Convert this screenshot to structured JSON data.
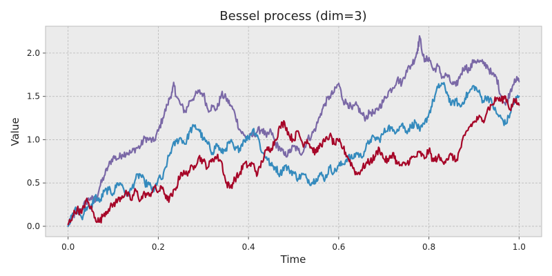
{
  "chart_data": {
    "type": "line",
    "title": "Bessel process (dim=3)",
    "xlabel": "Time",
    "ylabel": "Value",
    "xlim": [
      -0.05,
      1.05
    ],
    "ylim": [
      -0.12,
      2.31
    ],
    "xticks": [
      0.0,
      0.2,
      0.4,
      0.6,
      0.8,
      1.0
    ],
    "xtick_labels": [
      "0.0",
      "0.2",
      "0.4",
      "0.6",
      "0.8",
      "1.0"
    ],
    "yticks": [
      0.0,
      0.5,
      1.0,
      1.5,
      2.0
    ],
    "ytick_labels": [
      "0.0",
      "0.5",
      "1.0",
      "1.5",
      "2.0"
    ],
    "grid": true,
    "legend": "none",
    "background": "#ebebeb",
    "series": [
      {
        "color": "#7a68a6",
        "points": [
          [
            0.0,
            0.0
          ],
          [
            0.01,
            0.12
          ],
          [
            0.02,
            0.15
          ],
          [
            0.03,
            0.2
          ],
          [
            0.04,
            0.28
          ],
          [
            0.05,
            0.33
          ],
          [
            0.06,
            0.28
          ],
          [
            0.07,
            0.45
          ],
          [
            0.08,
            0.58
          ],
          [
            0.09,
            0.7
          ],
          [
            0.1,
            0.8
          ],
          [
            0.11,
            0.78
          ],
          [
            0.12,
            0.83
          ],
          [
            0.13,
            0.85
          ],
          [
            0.14,
            0.85
          ],
          [
            0.15,
            0.9
          ],
          [
            0.16,
            0.92
          ],
          [
            0.17,
            1.02
          ],
          [
            0.18,
            1.0
          ],
          [
            0.19,
            0.98
          ],
          [
            0.2,
            1.1
          ],
          [
            0.21,
            1.25
          ],
          [
            0.22,
            1.4
          ],
          [
            0.23,
            1.55
          ],
          [
            0.235,
            1.63
          ],
          [
            0.24,
            1.5
          ],
          [
            0.25,
            1.4
          ],
          [
            0.26,
            1.32
          ],
          [
            0.27,
            1.45
          ],
          [
            0.28,
            1.5
          ],
          [
            0.29,
            1.55
          ],
          [
            0.3,
            1.53
          ],
          [
            0.31,
            1.35
          ],
          [
            0.32,
            1.38
          ],
          [
            0.33,
            1.35
          ],
          [
            0.34,
            1.52
          ],
          [
            0.35,
            1.48
          ],
          [
            0.36,
            1.4
          ],
          [
            0.37,
            1.3
          ],
          [
            0.38,
            1.12
          ],
          [
            0.39,
            1.05
          ],
          [
            0.4,
            1.02
          ],
          [
            0.41,
            1.05
          ],
          [
            0.42,
            1.1
          ],
          [
            0.43,
            1.12
          ],
          [
            0.44,
            1.03
          ],
          [
            0.45,
            1.1
          ],
          [
            0.46,
            0.95
          ],
          [
            0.47,
            0.9
          ],
          [
            0.48,
            0.82
          ],
          [
            0.49,
            0.85
          ],
          [
            0.5,
            0.92
          ],
          [
            0.51,
            0.88
          ],
          [
            0.52,
            0.85
          ],
          [
            0.53,
            1.0
          ],
          [
            0.54,
            1.05
          ],
          [
            0.55,
            1.15
          ],
          [
            0.56,
            1.3
          ],
          [
            0.57,
            1.42
          ],
          [
            0.58,
            1.5
          ],
          [
            0.59,
            1.55
          ],
          [
            0.6,
            1.65
          ],
          [
            0.61,
            1.45
          ],
          [
            0.62,
            1.42
          ],
          [
            0.63,
            1.35
          ],
          [
            0.64,
            1.4
          ],
          [
            0.65,
            1.3
          ],
          [
            0.66,
            1.25
          ],
          [
            0.67,
            1.32
          ],
          [
            0.68,
            1.3
          ],
          [
            0.69,
            1.38
          ],
          [
            0.7,
            1.45
          ],
          [
            0.71,
            1.55
          ],
          [
            0.72,
            1.6
          ],
          [
            0.73,
            1.7
          ],
          [
            0.74,
            1.65
          ],
          [
            0.75,
            1.8
          ],
          [
            0.76,
            1.85
          ],
          [
            0.77,
            1.95
          ],
          [
            0.775,
            2.05
          ],
          [
            0.78,
            2.18
          ],
          [
            0.79,
            1.9
          ],
          [
            0.8,
            1.95
          ],
          [
            0.81,
            1.8
          ],
          [
            0.82,
            1.85
          ],
          [
            0.83,
            1.72
          ],
          [
            0.84,
            1.75
          ],
          [
            0.85,
            1.65
          ],
          [
            0.86,
            1.62
          ],
          [
            0.87,
            1.75
          ],
          [
            0.88,
            1.85
          ],
          [
            0.89,
            1.8
          ],
          [
            0.9,
            1.92
          ],
          [
            0.91,
            1.9
          ],
          [
            0.92,
            1.88
          ],
          [
            0.93,
            1.85
          ],
          [
            0.94,
            1.75
          ],
          [
            0.95,
            1.72
          ],
          [
            0.96,
            1.5
          ],
          [
            0.97,
            1.4
          ],
          [
            0.98,
            1.55
          ],
          [
            0.99,
            1.7
          ],
          [
            1.0,
            1.67
          ]
        ]
      },
      {
        "color": "#348abd",
        "points": [
          [
            0.0,
            0.0
          ],
          [
            0.01,
            0.15
          ],
          [
            0.02,
            0.2
          ],
          [
            0.03,
            0.1
          ],
          [
            0.04,
            0.22
          ],
          [
            0.05,
            0.2
          ],
          [
            0.06,
            0.35
          ],
          [
            0.07,
            0.28
          ],
          [
            0.08,
            0.4
          ],
          [
            0.09,
            0.42
          ],
          [
            0.1,
            0.38
          ],
          [
            0.11,
            0.5
          ],
          [
            0.12,
            0.48
          ],
          [
            0.13,
            0.35
          ],
          [
            0.14,
            0.42
          ],
          [
            0.15,
            0.55
          ],
          [
            0.16,
            0.6
          ],
          [
            0.17,
            0.5
          ],
          [
            0.18,
            0.48
          ],
          [
            0.19,
            0.4
          ],
          [
            0.2,
            0.55
          ],
          [
            0.21,
            0.55
          ],
          [
            0.22,
            0.75
          ],
          [
            0.23,
            0.9
          ],
          [
            0.24,
            0.98
          ],
          [
            0.25,
            1.02
          ],
          [
            0.26,
            0.95
          ],
          [
            0.27,
            1.1
          ],
          [
            0.28,
            1.15
          ],
          [
            0.29,
            1.12
          ],
          [
            0.3,
            1.0
          ],
          [
            0.31,
            0.95
          ],
          [
            0.32,
            0.85
          ],
          [
            0.33,
            0.95
          ],
          [
            0.34,
            0.85
          ],
          [
            0.35,
            0.9
          ],
          [
            0.36,
            0.98
          ],
          [
            0.37,
            0.88
          ],
          [
            0.38,
            0.9
          ],
          [
            0.39,
            1.0
          ],
          [
            0.4,
            1.02
          ],
          [
            0.41,
            1.12
          ],
          [
            0.42,
            1.05
          ],
          [
            0.43,
            0.85
          ],
          [
            0.44,
            0.8
          ],
          [
            0.45,
            0.7
          ],
          [
            0.46,
            0.68
          ],
          [
            0.47,
            0.6
          ],
          [
            0.48,
            0.7
          ],
          [
            0.49,
            0.65
          ],
          [
            0.5,
            0.62
          ],
          [
            0.51,
            0.55
          ],
          [
            0.52,
            0.6
          ],
          [
            0.53,
            0.55
          ],
          [
            0.54,
            0.5
          ],
          [
            0.55,
            0.55
          ],
          [
            0.56,
            0.6
          ],
          [
            0.57,
            0.55
          ],
          [
            0.58,
            0.68
          ],
          [
            0.59,
            0.62
          ],
          [
            0.6,
            0.7
          ],
          [
            0.61,
            0.72
          ],
          [
            0.62,
            0.8
          ],
          [
            0.63,
            0.78
          ],
          [
            0.64,
            0.85
          ],
          [
            0.65,
            0.8
          ],
          [
            0.66,
            0.9
          ],
          [
            0.67,
            1.0
          ],
          [
            0.68,
            1.02
          ],
          [
            0.69,
            1.0
          ],
          [
            0.7,
            1.08
          ],
          [
            0.71,
            1.15
          ],
          [
            0.72,
            1.1
          ],
          [
            0.73,
            1.12
          ],
          [
            0.74,
            1.18
          ],
          [
            0.75,
            1.1
          ],
          [
            0.76,
            1.15
          ],
          [
            0.77,
            1.2
          ],
          [
            0.78,
            1.1
          ],
          [
            0.79,
            1.18
          ],
          [
            0.8,
            1.3
          ],
          [
            0.81,
            1.45
          ],
          [
            0.82,
            1.6
          ],
          [
            0.83,
            1.65
          ],
          [
            0.84,
            1.55
          ],
          [
            0.85,
            1.4
          ],
          [
            0.86,
            1.45
          ],
          [
            0.87,
            1.38
          ],
          [
            0.88,
            1.48
          ],
          [
            0.89,
            1.55
          ],
          [
            0.9,
            1.62
          ],
          [
            0.91,
            1.55
          ],
          [
            0.92,
            1.45
          ],
          [
            0.93,
            1.5
          ],
          [
            0.94,
            1.42
          ],
          [
            0.95,
            1.3
          ],
          [
            0.96,
            1.25
          ],
          [
            0.97,
            1.18
          ],
          [
            0.98,
            1.3
          ],
          [
            0.99,
            1.45
          ],
          [
            1.0,
            1.5
          ]
        ]
      },
      {
        "color": "#a60628",
        "points": [
          [
            0.0,
            0.02
          ],
          [
            0.01,
            0.12
          ],
          [
            0.02,
            0.2
          ],
          [
            0.03,
            0.15
          ],
          [
            0.04,
            0.3
          ],
          [
            0.05,
            0.22
          ],
          [
            0.06,
            0.1
          ],
          [
            0.07,
            0.05
          ],
          [
            0.08,
            0.15
          ],
          [
            0.09,
            0.2
          ],
          [
            0.1,
            0.25
          ],
          [
            0.11,
            0.3
          ],
          [
            0.12,
            0.35
          ],
          [
            0.13,
            0.38
          ],
          [
            0.14,
            0.3
          ],
          [
            0.15,
            0.42
          ],
          [
            0.16,
            0.3
          ],
          [
            0.17,
            0.38
          ],
          [
            0.18,
            0.35
          ],
          [
            0.19,
            0.45
          ],
          [
            0.2,
            0.4
          ],
          [
            0.21,
            0.45
          ],
          [
            0.22,
            0.3
          ],
          [
            0.23,
            0.35
          ],
          [
            0.24,
            0.45
          ],
          [
            0.25,
            0.62
          ],
          [
            0.26,
            0.6
          ],
          [
            0.27,
            0.65
          ],
          [
            0.28,
            0.7
          ],
          [
            0.29,
            0.8
          ],
          [
            0.3,
            0.75
          ],
          [
            0.31,
            0.68
          ],
          [
            0.32,
            0.78
          ],
          [
            0.33,
            0.8
          ],
          [
            0.34,
            0.75
          ],
          [
            0.35,
            0.5
          ],
          [
            0.36,
            0.45
          ],
          [
            0.37,
            0.55
          ],
          [
            0.38,
            0.6
          ],
          [
            0.39,
            0.72
          ],
          [
            0.4,
            0.7
          ],
          [
            0.41,
            0.72
          ],
          [
            0.42,
            0.6
          ],
          [
            0.43,
            0.75
          ],
          [
            0.44,
            0.88
          ],
          [
            0.45,
            0.9
          ],
          [
            0.46,
            1.0
          ],
          [
            0.47,
            1.15
          ],
          [
            0.48,
            1.2
          ],
          [
            0.49,
            1.05
          ],
          [
            0.5,
            1.0
          ],
          [
            0.51,
            1.1
          ],
          [
            0.52,
            0.95
          ],
          [
            0.53,
            1.0
          ],
          [
            0.54,
            0.9
          ],
          [
            0.55,
            0.85
          ],
          [
            0.56,
            0.95
          ],
          [
            0.57,
            0.98
          ],
          [
            0.58,
            1.05
          ],
          [
            0.59,
            0.95
          ],
          [
            0.6,
            0.98
          ],
          [
            0.61,
            0.9
          ],
          [
            0.62,
            0.8
          ],
          [
            0.63,
            0.7
          ],
          [
            0.64,
            0.6
          ],
          [
            0.65,
            0.65
          ],
          [
            0.66,
            0.72
          ],
          [
            0.67,
            0.75
          ],
          [
            0.68,
            0.8
          ],
          [
            0.69,
            0.9
          ],
          [
            0.7,
            0.78
          ],
          [
            0.71,
            0.75
          ],
          [
            0.72,
            0.85
          ],
          [
            0.73,
            0.72
          ],
          [
            0.74,
            0.7
          ],
          [
            0.75,
            0.72
          ],
          [
            0.76,
            0.78
          ],
          [
            0.77,
            0.8
          ],
          [
            0.78,
            0.85
          ],
          [
            0.79,
            0.78
          ],
          [
            0.8,
            0.88
          ],
          [
            0.81,
            0.75
          ],
          [
            0.82,
            0.8
          ],
          [
            0.83,
            0.75
          ],
          [
            0.84,
            0.78
          ],
          [
            0.85,
            0.82
          ],
          [
            0.86,
            0.75
          ],
          [
            0.87,
            0.9
          ],
          [
            0.88,
            1.05
          ],
          [
            0.89,
            1.15
          ],
          [
            0.9,
            1.2
          ],
          [
            0.91,
            1.25
          ],
          [
            0.92,
            1.22
          ],
          [
            0.93,
            1.35
          ],
          [
            0.94,
            1.4
          ],
          [
            0.95,
            1.48
          ],
          [
            0.96,
            1.45
          ],
          [
            0.97,
            1.5
          ],
          [
            0.98,
            1.35
          ],
          [
            0.99,
            1.45
          ],
          [
            1.0,
            1.4
          ]
        ]
      }
    ]
  }
}
